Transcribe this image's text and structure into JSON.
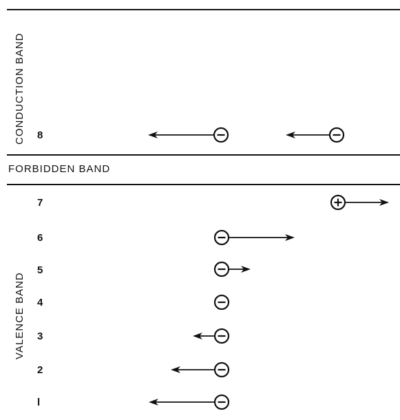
{
  "bands": {
    "conduction": "CONDUCTION BAND",
    "forbidden": "FORBIDDEN BAND",
    "valence": "VALENCE BAND"
  },
  "levels": [
    {
      "number": "8",
      "particles": [
        {
          "kind": "electron",
          "symbol": "-",
          "arrow": "left",
          "length": 3
        },
        {
          "kind": "electron",
          "symbol": "-",
          "arrow": "left",
          "length": 2
        }
      ]
    },
    {
      "number": "7",
      "particles": [
        {
          "kind": "hole",
          "symbol": "+",
          "arrow": "right",
          "length": 2
        }
      ]
    },
    {
      "number": "6",
      "particles": [
        {
          "kind": "electron",
          "symbol": "-",
          "arrow": "right",
          "length": 3
        }
      ]
    },
    {
      "number": "5",
      "particles": [
        {
          "kind": "electron",
          "symbol": "-",
          "arrow": "right",
          "length": 1
        }
      ]
    },
    {
      "number": "4",
      "particles": [
        {
          "kind": "electron",
          "symbol": "-",
          "arrow": "none",
          "length": 0
        }
      ]
    },
    {
      "number": "3",
      "particles": [
        {
          "kind": "electron",
          "symbol": "-",
          "arrow": "left",
          "length": 1
        }
      ]
    },
    {
      "number": "2",
      "particles": [
        {
          "kind": "electron",
          "symbol": "-",
          "arrow": "left",
          "length": 2
        }
      ]
    },
    {
      "number": "l",
      "particles": [
        {
          "kind": "electron",
          "symbol": "-",
          "arrow": "left",
          "length": 3
        }
      ]
    }
  ],
  "colors": {
    "ink": "#111111",
    "background": "#ffffff"
  }
}
